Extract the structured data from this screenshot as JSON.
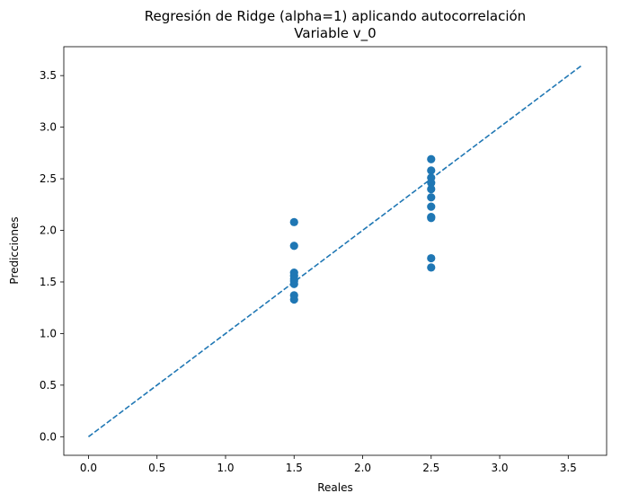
{
  "chart_data": {
    "type": "scatter",
    "title": "Regresión de Ridge (alpha=1) aplicando autocorrelación",
    "subtitle": "Variable v_0",
    "xlabel": "Reales",
    "ylabel": "Predicciones",
    "xlim": [
      -0.18,
      3.78
    ],
    "ylim": [
      -0.18,
      3.78
    ],
    "xticks": [
      0.0,
      0.5,
      1.0,
      1.5,
      2.0,
      2.5,
      3.0,
      3.5
    ],
    "yticks": [
      0.0,
      0.5,
      1.0,
      1.5,
      2.0,
      2.5,
      3.0,
      3.5
    ],
    "tick_labels": [
      "0.0",
      "0.5",
      "1.0",
      "1.5",
      "2.0",
      "2.5",
      "3.0",
      "3.5"
    ],
    "grid": false,
    "point_color": "#1f77b4",
    "line_color": "#1f77b4",
    "reference_line": {
      "style": "dashed",
      "from": [
        0.0,
        0.0
      ],
      "to": [
        3.6,
        3.6
      ]
    },
    "points": [
      {
        "x": 1.5,
        "y": 2.08
      },
      {
        "x": 1.5,
        "y": 1.85
      },
      {
        "x": 1.5,
        "y": 1.59
      },
      {
        "x": 1.5,
        "y": 1.56
      },
      {
        "x": 1.5,
        "y": 1.53
      },
      {
        "x": 1.5,
        "y": 1.51
      },
      {
        "x": 1.5,
        "y": 1.48
      },
      {
        "x": 1.5,
        "y": 1.37
      },
      {
        "x": 1.5,
        "y": 1.33
      },
      {
        "x": 2.5,
        "y": 2.69
      },
      {
        "x": 2.5,
        "y": 2.58
      },
      {
        "x": 2.5,
        "y": 2.51
      },
      {
        "x": 2.5,
        "y": 2.46
      },
      {
        "x": 2.5,
        "y": 2.4
      },
      {
        "x": 2.5,
        "y": 2.32
      },
      {
        "x": 2.5,
        "y": 2.23
      },
      {
        "x": 2.5,
        "y": 2.13
      },
      {
        "x": 2.5,
        "y": 2.12
      },
      {
        "x": 2.5,
        "y": 1.73
      },
      {
        "x": 2.5,
        "y": 1.64
      }
    ]
  }
}
